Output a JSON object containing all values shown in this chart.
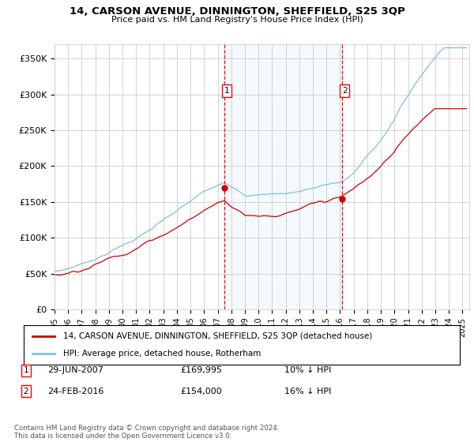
{
  "title": "14, CARSON AVENUE, DINNINGTON, SHEFFIELD, S25 3QP",
  "subtitle": "Price paid vs. HM Land Registry's House Price Index (HPI)",
  "ylabel_ticks": [
    "£0",
    "£50K",
    "£100K",
    "£150K",
    "£200K",
    "£250K",
    "£300K",
    "£350K"
  ],
  "ytick_vals": [
    0,
    50000,
    100000,
    150000,
    200000,
    250000,
    300000,
    350000
  ],
  "ylim": [
    0,
    370000
  ],
  "xlim_start": 1995.0,
  "xlim_end": 2025.5,
  "marker1_x": 2007.49,
  "marker1_y": 169995,
  "marker1_label": "29-JUN-2007",
  "marker1_price": "£169,995",
  "marker1_hpi": "10% ↓ HPI",
  "marker2_x": 2016.14,
  "marker2_y": 154000,
  "marker2_label": "24-FEB-2016",
  "marker2_price": "£154,000",
  "marker2_hpi": "16% ↓ HPI",
  "hpi_color": "#7fbfdf",
  "price_color": "#cc0000",
  "grid_color": "#cccccc",
  "bg_color": "#ffffff",
  "plot_bg_color": "#ffffff",
  "shade_color": "#ddeeff",
  "legend_label_price": "14, CARSON AVENUE, DINNINGTON, SHEFFIELD, S25 3QP (detached house)",
  "legend_label_hpi": "HPI: Average price, detached house, Rotherham",
  "footer": "Contains HM Land Registry data © Crown copyright and database right 2024.\nThis data is licensed under the Open Government Licence v3.0.",
  "xtick_years": [
    1995,
    1996,
    1997,
    1998,
    1999,
    2000,
    2001,
    2002,
    2003,
    2004,
    2005,
    2006,
    2007,
    2008,
    2009,
    2010,
    2011,
    2012,
    2013,
    2014,
    2015,
    2016,
    2017,
    2018,
    2019,
    2020,
    2021,
    2022,
    2023,
    2024,
    2025
  ]
}
